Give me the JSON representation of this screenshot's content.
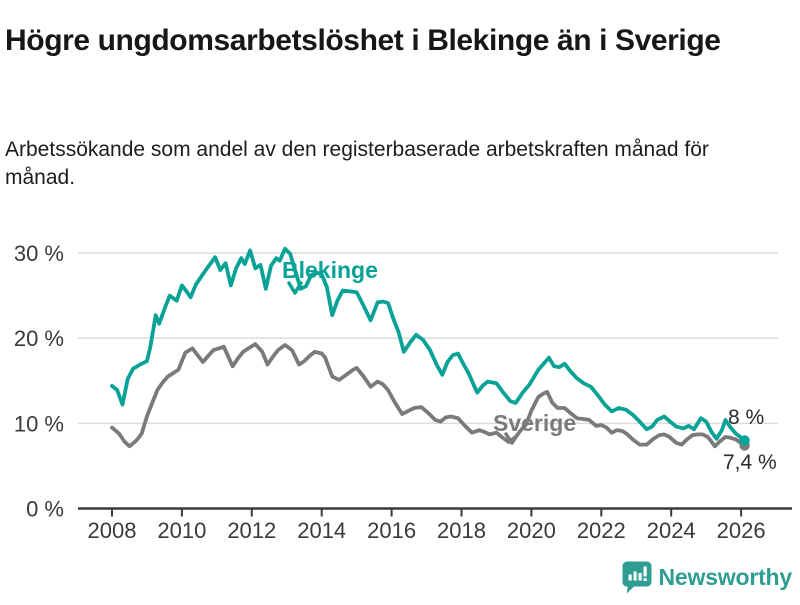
{
  "header": {
    "title": "Högre ungdomsarbetslöshet i Blekinge än i Sverige",
    "subtitle": "Arbetssökande som andel av den registerbaserade arbetskraften månad för månad."
  },
  "footer": {
    "brand": "Newsworthy",
    "logo_icon": "speech-bubble-bar-chart-icon"
  },
  "colors": {
    "blekinge": "#09a296",
    "sverige": "#7a7a7a",
    "grid": "#dcdcdc",
    "axis": "#3a3a3a",
    "annotation": "#2b2b2b",
    "brand": "#2f9e92",
    "background": "#ffffff"
  },
  "chart_data": {
    "type": "line",
    "title": "Högre ungdomsarbetslöshet i Blekinge än i Sverige",
    "xlabel": "",
    "ylabel": "Arbetssökande som andel av den registerbaserade arbetskraften, %",
    "xlim": [
      2007.9,
      2026.45
    ],
    "ylim": [
      0,
      32
    ],
    "grid": "horizontal",
    "legend_position": "inline-labels",
    "x_ticks": [
      2008,
      2010,
      2012,
      2014,
      2016,
      2018,
      2020,
      2022,
      2024,
      2026
    ],
    "y_ticks": [
      0,
      10,
      20,
      30
    ],
    "y_tick_labels": [
      "0 %",
      "10 %",
      "20 %",
      "30 %"
    ],
    "series": [
      {
        "name": "Sverige",
        "color": "#7a7a7a",
        "end_label": "7,4 %",
        "end_value": 7.4,
        "points": [
          [
            2008.0,
            9.5
          ],
          [
            2008.2,
            8.8
          ],
          [
            2008.35,
            7.9
          ],
          [
            2008.5,
            7.3
          ],
          [
            2008.7,
            8.0
          ],
          [
            2008.85,
            8.8
          ],
          [
            2009.0,
            10.8
          ],
          [
            2009.15,
            12.4
          ],
          [
            2009.3,
            13.9
          ],
          [
            2009.45,
            14.8
          ],
          [
            2009.6,
            15.5
          ],
          [
            2009.75,
            15.9
          ],
          [
            2009.9,
            16.3
          ],
          [
            2010.1,
            18.3
          ],
          [
            2010.3,
            18.8
          ],
          [
            2010.45,
            18.0
          ],
          [
            2010.6,
            17.2
          ],
          [
            2010.75,
            17.9
          ],
          [
            2010.9,
            18.6
          ],
          [
            2011.05,
            18.8
          ],
          [
            2011.2,
            19.0
          ],
          [
            2011.45,
            16.7
          ],
          [
            2011.6,
            17.6
          ],
          [
            2011.75,
            18.4
          ],
          [
            2011.9,
            18.8
          ],
          [
            2012.1,
            19.3
          ],
          [
            2012.3,
            18.4
          ],
          [
            2012.45,
            16.9
          ],
          [
            2012.6,
            17.8
          ],
          [
            2012.75,
            18.6
          ],
          [
            2012.95,
            19.2
          ],
          [
            2013.15,
            18.6
          ],
          [
            2013.35,
            16.9
          ],
          [
            2013.5,
            17.3
          ],
          [
            2013.65,
            17.9
          ],
          [
            2013.8,
            18.4
          ],
          [
            2014.0,
            18.2
          ],
          [
            2014.1,
            17.7
          ],
          [
            2014.3,
            15.5
          ],
          [
            2014.5,
            15.1
          ],
          [
            2014.7,
            15.7
          ],
          [
            2014.9,
            16.3
          ],
          [
            2015.0,
            16.5
          ],
          [
            2015.2,
            15.5
          ],
          [
            2015.4,
            14.3
          ],
          [
            2015.6,
            14.9
          ],
          [
            2015.75,
            14.6
          ],
          [
            2015.9,
            13.9
          ],
          [
            2016.1,
            12.4
          ],
          [
            2016.3,
            11.1
          ],
          [
            2016.5,
            11.5
          ],
          [
            2016.65,
            11.8
          ],
          [
            2016.85,
            11.9
          ],
          [
            2017.05,
            11.2
          ],
          [
            2017.25,
            10.4
          ],
          [
            2017.4,
            10.2
          ],
          [
            2017.55,
            10.7
          ],
          [
            2017.7,
            10.8
          ],
          [
            2017.9,
            10.6
          ],
          [
            2018.1,
            9.7
          ],
          [
            2018.3,
            8.9
          ],
          [
            2018.5,
            9.2
          ],
          [
            2018.65,
            9.0
          ],
          [
            2018.8,
            8.7
          ],
          [
            2019.0,
            8.9
          ],
          [
            2019.15,
            8.4
          ],
          [
            2019.35,
            7.8
          ],
          [
            2019.55,
            8.4
          ],
          [
            2019.7,
            9.2
          ],
          [
            2019.85,
            9.9
          ],
          [
            2020.0,
            11.5
          ],
          [
            2020.2,
            13.1
          ],
          [
            2020.35,
            13.5
          ],
          [
            2020.45,
            13.7
          ],
          [
            2020.6,
            12.4
          ],
          [
            2020.75,
            11.8
          ],
          [
            2020.95,
            11.8
          ],
          [
            2021.15,
            11.1
          ],
          [
            2021.3,
            10.6
          ],
          [
            2021.5,
            10.5
          ],
          [
            2021.65,
            10.4
          ],
          [
            2021.85,
            9.7
          ],
          [
            2022.0,
            9.8
          ],
          [
            2022.15,
            9.5
          ],
          [
            2022.3,
            8.9
          ],
          [
            2022.45,
            9.2
          ],
          [
            2022.6,
            9.1
          ],
          [
            2022.75,
            8.7
          ],
          [
            2022.9,
            8.1
          ],
          [
            2023.1,
            7.5
          ],
          [
            2023.3,
            7.5
          ],
          [
            2023.5,
            8.2
          ],
          [
            2023.65,
            8.6
          ],
          [
            2023.8,
            8.7
          ],
          [
            2023.95,
            8.4
          ],
          [
            2024.15,
            7.7
          ],
          [
            2024.3,
            7.5
          ],
          [
            2024.45,
            8.1
          ],
          [
            2024.6,
            8.6
          ],
          [
            2024.75,
            8.7
          ],
          [
            2024.9,
            8.7
          ],
          [
            2025.05,
            8.4
          ],
          [
            2025.25,
            7.3
          ],
          [
            2025.4,
            7.9
          ],
          [
            2025.55,
            8.4
          ],
          [
            2025.7,
            8.3
          ],
          [
            2025.85,
            8.1
          ],
          [
            2026.1,
            7.4
          ]
        ]
      },
      {
        "name": "Blekinge",
        "color": "#09a296",
        "end_label": "8 %",
        "end_value": 8.0,
        "points": [
          [
            2008.0,
            14.4
          ],
          [
            2008.15,
            13.9
          ],
          [
            2008.3,
            12.2
          ],
          [
            2008.45,
            15.2
          ],
          [
            2008.6,
            16.4
          ],
          [
            2008.8,
            16.9
          ],
          [
            2009.0,
            17.3
          ],
          [
            2009.1,
            19.0
          ],
          [
            2009.25,
            22.7
          ],
          [
            2009.35,
            21.7
          ],
          [
            2009.5,
            23.4
          ],
          [
            2009.65,
            25.0
          ],
          [
            2009.85,
            24.4
          ],
          [
            2010.0,
            26.2
          ],
          [
            2010.15,
            25.4
          ],
          [
            2010.25,
            24.8
          ],
          [
            2010.4,
            26.3
          ],
          [
            2010.55,
            27.2
          ],
          [
            2010.7,
            28.1
          ],
          [
            2010.95,
            29.5
          ],
          [
            2011.1,
            28.0
          ],
          [
            2011.25,
            28.8
          ],
          [
            2011.4,
            26.2
          ],
          [
            2011.55,
            28.2
          ],
          [
            2011.7,
            29.4
          ],
          [
            2011.8,
            28.7
          ],
          [
            2011.95,
            30.3
          ],
          [
            2012.1,
            28.2
          ],
          [
            2012.25,
            28.6
          ],
          [
            2012.4,
            25.8
          ],
          [
            2012.55,
            28.5
          ],
          [
            2012.7,
            29.4
          ],
          [
            2012.8,
            29.1
          ],
          [
            2012.95,
            30.5
          ],
          [
            2013.1,
            29.9
          ],
          [
            2013.25,
            27.8
          ],
          [
            2013.4,
            25.8
          ],
          [
            2013.55,
            26.1
          ],
          [
            2013.7,
            27.4
          ],
          [
            2013.85,
            27.7
          ],
          [
            2014.0,
            27.5
          ],
          [
            2014.15,
            26.0
          ],
          [
            2014.3,
            22.7
          ],
          [
            2014.45,
            24.4
          ],
          [
            2014.6,
            25.6
          ],
          [
            2014.8,
            25.5
          ],
          [
            2015.0,
            25.4
          ],
          [
            2015.2,
            23.8
          ],
          [
            2015.4,
            22.1
          ],
          [
            2015.6,
            24.2
          ],
          [
            2015.75,
            24.3
          ],
          [
            2015.9,
            24.1
          ],
          [
            2016.05,
            22.3
          ],
          [
            2016.2,
            20.7
          ],
          [
            2016.35,
            18.4
          ],
          [
            2016.55,
            19.6
          ],
          [
            2016.7,
            20.4
          ],
          [
            2016.9,
            19.8
          ],
          [
            2017.1,
            18.6
          ],
          [
            2017.3,
            16.8
          ],
          [
            2017.45,
            15.7
          ],
          [
            2017.6,
            17.2
          ],
          [
            2017.75,
            18.0
          ],
          [
            2017.9,
            18.2
          ],
          [
            2018.05,
            17.0
          ],
          [
            2018.2,
            15.9
          ],
          [
            2018.45,
            13.6
          ],
          [
            2018.6,
            14.4
          ],
          [
            2018.75,
            14.9
          ],
          [
            2019.0,
            14.7
          ],
          [
            2019.2,
            13.6
          ],
          [
            2019.4,
            12.6
          ],
          [
            2019.55,
            12.4
          ],
          [
            2019.75,
            13.6
          ],
          [
            2019.95,
            14.6
          ],
          [
            2020.2,
            16.3
          ],
          [
            2020.35,
            17.0
          ],
          [
            2020.5,
            17.7
          ],
          [
            2020.65,
            16.7
          ],
          [
            2020.8,
            16.6
          ],
          [
            2020.95,
            17.0
          ],
          [
            2021.1,
            16.2
          ],
          [
            2021.3,
            15.3
          ],
          [
            2021.5,
            14.7
          ],
          [
            2021.7,
            14.3
          ],
          [
            2021.9,
            13.3
          ],
          [
            2022.1,
            12.2
          ],
          [
            2022.3,
            11.4
          ],
          [
            2022.5,
            11.8
          ],
          [
            2022.7,
            11.6
          ],
          [
            2022.9,
            11.0
          ],
          [
            2023.1,
            10.2
          ],
          [
            2023.3,
            9.3
          ],
          [
            2023.45,
            9.6
          ],
          [
            2023.6,
            10.4
          ],
          [
            2023.8,
            10.8
          ],
          [
            2024.0,
            10.1
          ],
          [
            2024.15,
            9.6
          ],
          [
            2024.35,
            9.4
          ],
          [
            2024.5,
            9.7
          ],
          [
            2024.65,
            9.3
          ],
          [
            2024.85,
            10.6
          ],
          [
            2025.0,
            10.2
          ],
          [
            2025.15,
            9.0
          ],
          [
            2025.3,
            8.2
          ],
          [
            2025.45,
            9.2
          ],
          [
            2025.55,
            10.4
          ],
          [
            2025.7,
            9.5
          ],
          [
            2025.85,
            8.8
          ],
          [
            2026.1,
            8.0
          ]
        ]
      }
    ]
  }
}
